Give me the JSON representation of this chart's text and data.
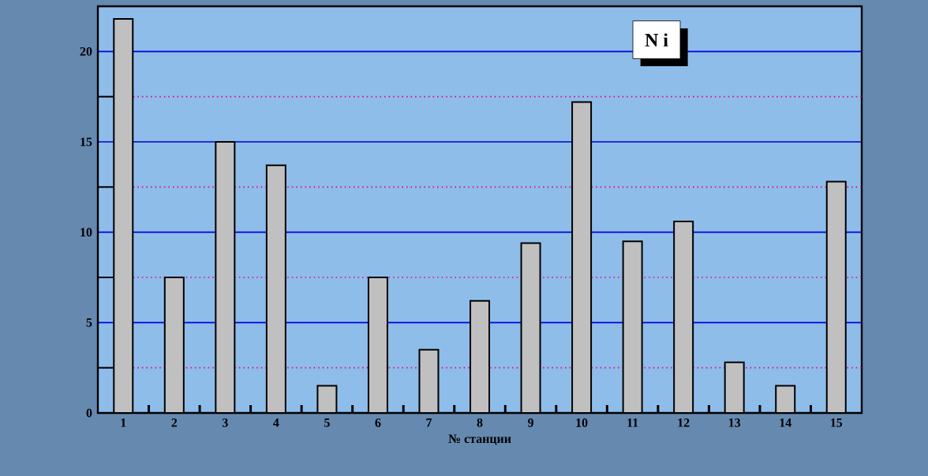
{
  "chart_data": {
    "type": "bar",
    "xlabel": "№   станции",
    "annotations": [
      "N i"
    ],
    "categories": [
      "1",
      "2",
      "3",
      "4",
      "5",
      "6",
      "7",
      "8",
      "9",
      "10",
      "11",
      "12",
      "13",
      "14",
      "15"
    ],
    "values": [
      21.8,
      7.5,
      15,
      13.7,
      1.5,
      7.5,
      3.5,
      6.2,
      9.4,
      17.2,
      9.5,
      10.6,
      2.8,
      1.5,
      12.8
    ],
    "color": "#c0c0c0",
    "ylim": [
      0,
      22.5
    ],
    "yticks": [
      0,
      {
        "value": 2.5,
        "label": null
      },
      5,
      {
        "value": 7.5,
        "label": null
      },
      10,
      {
        "value": 12.5,
        "label": null
      },
      15,
      {
        "value": 17.5,
        "label": null
      },
      20
    ],
    "grid": "y"
  }
}
